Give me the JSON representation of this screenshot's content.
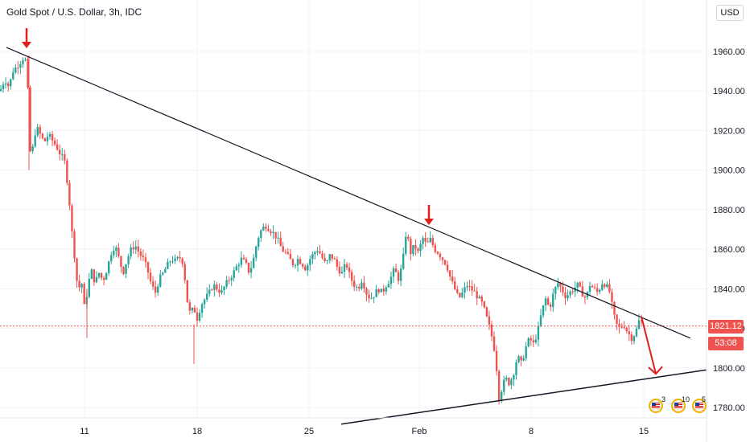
{
  "header": {
    "symbol": "Gold Spot / U.S. Dollar",
    "interval": "3h",
    "source": "IDC",
    "separator1": " / ",
    "currency_button": "USD"
  },
  "price_axis": {
    "last_price": "1821.12",
    "countdown": "53:08",
    "last_price_color": "#ef5350",
    "countdown_color": "#ef5350"
  },
  "events": [
    {
      "icon": "us-flag-icon",
      "count": "3"
    },
    {
      "icon": "us-flag-icon",
      "count": "10"
    },
    {
      "icon": "us-flag-icon",
      "count": "5"
    }
  ],
  "colors": {
    "up": "#26a69a",
    "down": "#ef5350",
    "grid": "#f0f3fa",
    "trendline": "#131722",
    "annotation": "#e0201b"
  },
  "chart_data": {
    "type": "candlestick",
    "instrument": "Gold Spot / U.S. Dollar",
    "timeframe": "3h",
    "x_ticks": [
      "11",
      "18",
      "25",
      "Feb",
      "8",
      "15"
    ],
    "y_ticks": [
      1780,
      1800,
      1820,
      1840,
      1860,
      1880,
      1900,
      1920,
      1940,
      1960
    ],
    "y_tick_labels": [
      "1780.00",
      "1800.00",
      "1820.00",
      "1840.00",
      "1860.00",
      "1880.00",
      "1900.00",
      "1920.00",
      "1940.00",
      "1960.00"
    ],
    "ylim": [
      1774,
      1983
    ],
    "grid": true,
    "last_price": 1821.12,
    "price_path": [
      [
        0,
        1940
      ],
      [
        6,
        1946
      ],
      [
        11,
        1942
      ],
      [
        16,
        1950
      ],
      [
        20,
        1952
      ],
      [
        26,
        1955
      ],
      [
        31,
        1958
      ],
      [
        35,
        1938
      ],
      [
        38,
        1905
      ],
      [
        41,
        1912
      ],
      [
        45,
        1922
      ],
      [
        50,
        1918
      ],
      [
        55,
        1914
      ],
      [
        60,
        1918
      ],
      [
        65,
        1915
      ],
      [
        70,
        1912
      ],
      [
        75,
        1908
      ],
      [
        80,
        1905
      ],
      [
        85,
        1890
      ],
      [
        89,
        1870
      ],
      [
        93,
        1855
      ],
      [
        97,
        1838
      ],
      [
        101,
        1845
      ],
      [
        105,
        1830
      ],
      [
        109,
        1840
      ],
      [
        113,
        1850
      ],
      [
        118,
        1843
      ],
      [
        123,
        1848
      ],
      [
        128,
        1844
      ],
      [
        133,
        1850
      ],
      [
        138,
        1858
      ],
      [
        143,
        1862
      ],
      [
        148,
        1855
      ],
      [
        153,
        1848
      ],
      [
        158,
        1855
      ],
      [
        163,
        1860
      ],
      [
        168,
        1862
      ],
      [
        173,
        1858
      ],
      [
        178,
        1855
      ],
      [
        183,
        1850
      ],
      [
        188,
        1842
      ],
      [
        193,
        1838
      ],
      [
        198,
        1845
      ],
      [
        203,
        1848
      ],
      [
        208,
        1852
      ],
      [
        213,
        1855
      ],
      [
        218,
        1854
      ],
      [
        223,
        1856
      ],
      [
        228,
        1853
      ],
      [
        232,
        1835
      ],
      [
        236,
        1828
      ],
      [
        241,
        1830
      ],
      [
        245,
        1825
      ],
      [
        250,
        1832
      ],
      [
        255,
        1835
      ],
      [
        260,
        1838
      ],
      [
        265,
        1842
      ],
      [
        270,
        1840
      ],
      [
        275,
        1838
      ],
      [
        280,
        1842
      ],
      [
        285,
        1845
      ],
      [
        290,
        1848
      ],
      [
        295,
        1852
      ],
      [
        300,
        1855
      ],
      [
        305,
        1853
      ],
      [
        310,
        1848
      ],
      [
        315,
        1855
      ],
      [
        320,
        1865
      ],
      [
        325,
        1870
      ],
      [
        330,
        1872
      ],
      [
        335,
        1870
      ],
      [
        340,
        1868
      ],
      [
        345,
        1865
      ],
      [
        350,
        1860
      ],
      [
        355,
        1858
      ],
      [
        360,
        1855
      ],
      [
        365,
        1852
      ],
      [
        370,
        1855
      ],
      [
        375,
        1853
      ],
      [
        380,
        1850
      ],
      [
        385,
        1855
      ],
      [
        390,
        1858
      ],
      [
        395,
        1860
      ],
      [
        400,
        1856
      ],
      [
        405,
        1852
      ],
      [
        410,
        1857
      ],
      [
        415,
        1855
      ],
      [
        420,
        1850
      ],
      [
        425,
        1848
      ],
      [
        430,
        1853
      ],
      [
        435,
        1846
      ],
      [
        440,
        1842
      ],
      [
        445,
        1840
      ],
      [
        450,
        1845
      ],
      [
        455,
        1838
      ],
      [
        460,
        1835
      ],
      [
        465,
        1837
      ],
      [
        470,
        1840
      ],
      [
        475,
        1838
      ],
      [
        480,
        1842
      ],
      [
        485,
        1845
      ],
      [
        490,
        1850
      ],
      [
        495,
        1845
      ],
      [
        500,
        1852
      ],
      [
        505,
        1870
      ],
      [
        510,
        1858
      ],
      [
        515,
        1862
      ],
      [
        520,
        1858
      ],
      [
        525,
        1866
      ],
      [
        530,
        1862
      ],
      [
        535,
        1865
      ],
      [
        540,
        1860
      ],
      [
        545,
        1858
      ],
      [
        550,
        1855
      ],
      [
        555,
        1852
      ],
      [
        560,
        1845
      ],
      [
        565,
        1840
      ],
      [
        570,
        1835
      ],
      [
        575,
        1838
      ],
      [
        580,
        1842
      ],
      [
        585,
        1840
      ],
      [
        590,
        1838
      ],
      [
        595,
        1835
      ],
      [
        600,
        1832
      ],
      [
        605,
        1825
      ],
      [
        610,
        1818
      ],
      [
        614,
        1810
      ],
      [
        617,
        1800
      ],
      [
        620,
        1785
      ],
      [
        624,
        1790
      ],
      [
        628,
        1795
      ],
      [
        633,
        1792
      ],
      [
        638,
        1797
      ],
      [
        643,
        1806
      ],
      [
        648,
        1802
      ],
      [
        653,
        1810
      ],
      [
        658,
        1815
      ],
      [
        663,
        1812
      ],
      [
        668,
        1818
      ],
      [
        673,
        1828
      ],
      [
        678,
        1835
      ],
      [
        683,
        1830
      ],
      [
        688,
        1838
      ],
      [
        693,
        1843
      ],
      [
        698,
        1840
      ],
      [
        703,
        1836
      ],
      [
        708,
        1838
      ],
      [
        713,
        1840
      ],
      [
        718,
        1842
      ],
      [
        723,
        1838
      ],
      [
        728,
        1835
      ],
      [
        733,
        1842
      ],
      [
        738,
        1840
      ],
      [
        743,
        1838
      ],
      [
        748,
        1843
      ],
      [
        753,
        1842
      ],
      [
        758,
        1838
      ],
      [
        762,
        1828
      ],
      [
        766,
        1822
      ],
      [
        770,
        1820
      ],
      [
        775,
        1822
      ],
      [
        780,
        1818
      ],
      [
        785,
        1815
      ],
      [
        790,
        1818
      ],
      [
        795,
        1825
      ],
      [
        800,
        1821
      ]
    ],
    "annotations": [
      {
        "type": "trendline",
        "from": [
          "start",
          1962
        ],
        "to": [
          "right",
          1815
        ]
      },
      {
        "type": "trendline",
        "from": [
          "24",
          1774
        ],
        "to": [
          "right",
          1799
        ]
      },
      {
        "type": "arrow-down",
        "at_price": 1962,
        "location": "January high"
      },
      {
        "type": "arrow-down",
        "at_price": 1876,
        "location": "Feb 1 high"
      },
      {
        "type": "arrow-projection",
        "from_price": 1826,
        "to_price": 1797
      }
    ]
  }
}
